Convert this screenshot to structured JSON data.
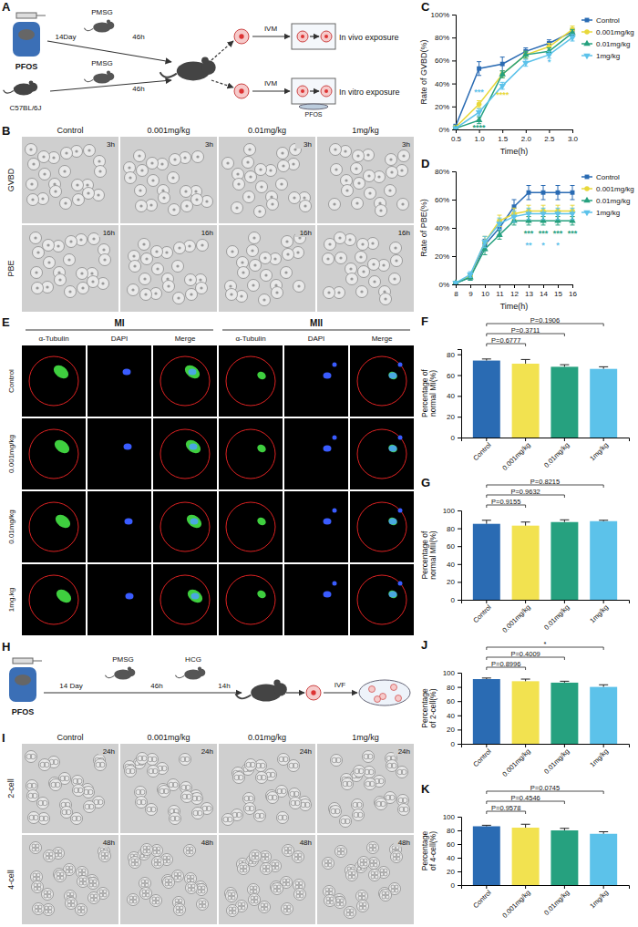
{
  "diagram_a": {
    "panel": "A",
    "pfos": "PFOS",
    "duration": "14Day",
    "priming": "46h",
    "hormone": "PMSG",
    "strain": "C57BL/6J",
    "priming_control": "46h",
    "hormone_control": "PMSG",
    "culture": "IVM",
    "in_vivo": "In vivo exposure",
    "culture_vitro": "IVM",
    "in_vitro": "In vitro exposure",
    "dish_pfos": "PFOS"
  },
  "image_b": {
    "panel": "B",
    "columns": [
      "Control",
      "0.001mg/kg",
      "0.01mg/kg",
      "1mg/kg"
    ],
    "rows": [
      "GVBD",
      "PBE"
    ],
    "times": [
      "3h",
      "16h"
    ]
  },
  "image_e": {
    "panel": "E",
    "stages": [
      "MI",
      "MII"
    ],
    "channels": [
      "α-Tubulin",
      "DAPI",
      "Merge"
    ],
    "rows": [
      "Control",
      "0.001mg/kg",
      "0.01mg/kg",
      "1mg.kg"
    ]
  },
  "diagram_h": {
    "panel": "H",
    "pfos": "PFOS",
    "duration": "14 Day",
    "priming": "46h",
    "ovulation": "14h",
    "hormone1": "PMSG",
    "hormone2": "HCG",
    "fertilization": "IVF"
  },
  "image_i": {
    "panel": "I",
    "columns": [
      "Control",
      "0.001mg/kg",
      "0.01mg/kg",
      "1mg/kg"
    ],
    "rows": [
      "2-cell",
      "4-cell"
    ],
    "times": [
      "24h",
      "48h"
    ]
  },
  "chart_data": [
    {
      "panel": "C",
      "type": "line",
      "x_label": "Time(h)",
      "y_label": "Rate of GVBD(%)",
      "x": [
        0.5,
        1,
        1.5,
        2,
        2.5,
        3
      ],
      "xlim": [
        0.5,
        3
      ],
      "xticks": [
        0.5,
        {
          "value": 1,
          "label": "1.0"
        },
        1.5,
        {
          "value": 2,
          "label": "2.0"
        },
        2.5,
        {
          "value": 3,
          "label": "3.0"
        }
      ],
      "ylim": [
        0,
        100
      ],
      "yticks": [
        {
          "value": 0,
          "label": "0%"
        },
        {
          "value": 20,
          "label": "20%"
        },
        {
          "value": 40,
          "label": "40%"
        },
        {
          "value": 60,
          "label": "60%"
        },
        {
          "value": 80,
          "label": "80%"
        },
        {
          "value": 100,
          "label": "100%"
        }
      ],
      "legend": "right",
      "series": [
        {
          "name": "Control",
          "color": "#2a6bb3",
          "marker": "square",
          "values": [
            3,
            53,
            57,
            68,
            75,
            85
          ],
          "errors": [
            1,
            6,
            6,
            3,
            3,
            3
          ]
        },
        {
          "name": "0.001mg/kg",
          "color": "#e8d83a",
          "marker": "circle",
          "values": [
            2,
            22,
            48,
            65,
            72,
            87
          ],
          "errors": [
            1,
            3,
            3,
            3,
            3,
            3
          ]
        },
        {
          "name": "0.01mg/kg",
          "color": "#26a17f",
          "marker": "triangle",
          "values": [
            1,
            8,
            48,
            65,
            68,
            84
          ],
          "errors": [
            1,
            3,
            3,
            3,
            3,
            3
          ]
        },
        {
          "name": "1mg/kg",
          "color": "#5cc2ea",
          "marker": "triangle-down",
          "values": [
            1,
            15,
            38,
            58,
            65,
            80
          ],
          "errors": [
            1,
            3,
            3,
            3,
            3,
            3
          ]
        }
      ],
      "annotations": [
        {
          "text": "***",
          "x": 1,
          "y": 30,
          "color": "#5cc2ea"
        },
        {
          "text": "****",
          "x": 1,
          "y": -1,
          "color": "#26a17f"
        },
        {
          "text": "****",
          "x": 1.5,
          "y": 28,
          "color": "#e8d83a"
        },
        {
          "text": "*",
          "x": 2.5,
          "y": 56,
          "color": "#5cc2ea"
        }
      ]
    },
    {
      "panel": "D",
      "type": "line",
      "x_label": "Time(h)",
      "y_label": "Rate of PBE(%)",
      "x": [
        8,
        9,
        10,
        11,
        12,
        13,
        14,
        15,
        16
      ],
      "xlim": [
        8,
        16
      ],
      "xticks": [
        8,
        9,
        10,
        11,
        12,
        13,
        14,
        15,
        16
      ],
      "ylim": [
        0,
        80
      ],
      "yticks": [
        {
          "value": 0,
          "label": "0%"
        },
        {
          "value": 20,
          "label": "20%"
        },
        {
          "value": 40,
          "label": "40%"
        },
        {
          "value": 60,
          "label": "60%"
        },
        {
          "value": 80,
          "label": "80%"
        }
      ],
      "legend": "right",
      "series": [
        {
          "name": "Control",
          "color": "#2a6bb3",
          "marker": "square",
          "values": [
            1,
            5,
            28,
            40,
            55,
            65,
            65,
            65,
            65
          ],
          "errors": [
            1,
            2,
            4,
            5,
            5,
            5,
            5,
            5,
            5
          ]
        },
        {
          "name": "0.001mg/kg",
          "color": "#e8d83a",
          "marker": "circle",
          "values": [
            1,
            6,
            30,
            45,
            50,
            52,
            52,
            52,
            52
          ],
          "errors": [
            1,
            2,
            4,
            4,
            4,
            4,
            4,
            4,
            4
          ]
        },
        {
          "name": "0.01mg/kg",
          "color": "#26a17f",
          "marker": "triangle",
          "values": [
            1,
            5,
            25,
            35,
            45,
            45,
            45,
            45,
            45
          ],
          "errors": [
            1,
            2,
            4,
            3,
            3,
            3,
            3,
            3,
            3
          ]
        },
        {
          "name": "1mg/kg",
          "color": "#5cc2ea",
          "marker": "triangle-down",
          "values": [
            1,
            7,
            30,
            43,
            48,
            50,
            50,
            50,
            50
          ],
          "errors": [
            1,
            2,
            4,
            4,
            4,
            4,
            4,
            4,
            4
          ]
        }
      ],
      "annotations": [
        {
          "text": "**",
          "x": 13,
          "y": 26,
          "color": "#5cc2ea"
        },
        {
          "text": "*",
          "x": 14,
          "y": 26,
          "color": "#5cc2ea"
        },
        {
          "text": "*",
          "x": 15,
          "y": 26,
          "color": "#5cc2ea"
        },
        {
          "text": "***",
          "x": 13,
          "y": 34,
          "color": "#26a17f"
        },
        {
          "text": "***",
          "x": 14,
          "y": 34,
          "color": "#26a17f"
        },
        {
          "text": "***",
          "x": 15,
          "y": 34,
          "color": "#26a17f"
        },
        {
          "text": "***",
          "x": 16,
          "y": 34,
          "color": "#26a17f"
        }
      ]
    },
    {
      "panel": "F",
      "type": "bar",
      "y_label": "Percentage of normal MI(%)",
      "categories": [
        "Control",
        "0.001mg/kg",
        "0.01mg/kg",
        "1mg/kg"
      ],
      "values": [
        74,
        71,
        68,
        66
      ],
      "errors": [
        1.5,
        4,
        2,
        2
      ],
      "colors": [
        "#2a6bb3",
        "#f2e250",
        "#26a17f",
        "#5cc2ea"
      ],
      "ylim": [
        0,
        85
      ],
      "yticks": [
        0,
        20,
        40,
        60,
        80
      ],
      "comparisons": [
        {
          "label": "P=0.6777",
          "group": "0.001mg/kg"
        },
        {
          "label": "P=0.3711",
          "group": "0.01mg/kg"
        },
        {
          "label": "P=0.1906",
          "group": "1mg/kg"
        }
      ]
    },
    {
      "panel": "G",
      "type": "bar",
      "y_label": "Percentage of normal MII(%)",
      "categories": [
        "Control",
        "0.001mg/kg",
        "0.01mg/kg",
        "1mg/kg"
      ],
      "values": [
        85,
        83,
        87,
        88
      ],
      "errors": [
        4,
        4,
        2.5,
        1
      ],
      "colors": [
        "#2a6bb3",
        "#f2e250",
        "#26a17f",
        "#5cc2ea"
      ],
      "ylim": [
        0,
        100
      ],
      "yticks": [
        0,
        20,
        40,
        60,
        80,
        100
      ],
      "comparisons": [
        {
          "label": "P=0.9155",
          "group": "0.001mg/kg"
        },
        {
          "label": "P=0.9632",
          "group": "0.01mg/kg"
        },
        {
          "label": "P=0.8215",
          "group": "1mg/kg"
        }
      ]
    },
    {
      "panel": "J",
      "type": "bar",
      "y_label": "Percentage of 2-cell(%)",
      "categories": [
        "Control",
        "0.001mg/kg",
        "0.01mg/kg",
        "1mg/kg"
      ],
      "values": [
        91,
        88,
        86,
        80
      ],
      "errors": [
        1.5,
        3,
        2,
        3
      ],
      "colors": [
        "#2a6bb3",
        "#f2e250",
        "#26a17f",
        "#5cc2ea"
      ],
      "ylim": [
        0,
        100
      ],
      "yticks": [
        0,
        20,
        40,
        60,
        80,
        100
      ],
      "comparisons": [
        {
          "label": "P=0.8996",
          "group": "0.001mg/kg"
        },
        {
          "label": "P=0.4009",
          "group": "0.01mg/kg"
        },
        {
          "label": "*",
          "group": "1mg/kg"
        }
      ]
    },
    {
      "panel": "K",
      "type": "bar",
      "y_label": "Percentage of 4-cell(%)",
      "categories": [
        "Control",
        "0.001mg/kg",
        "0.01mg/kg",
        "1mg/kg"
      ],
      "values": [
        86,
        84,
        80,
        75
      ],
      "errors": [
        1.5,
        5,
        3,
        3
      ],
      "colors": [
        "#2a6bb3",
        "#f2e250",
        "#26a17f",
        "#5cc2ea"
      ],
      "ylim": [
        0,
        100
      ],
      "yticks": [
        0,
        20,
        40,
        60,
        80,
        100
      ],
      "comparisons": [
        {
          "label": "P=0.9578",
          "group": "0.001mg/kg"
        },
        {
          "label": "P=0.4546",
          "group": "0.01mg/kg"
        },
        {
          "label": "P=0.0745",
          "group": "1mg/kg"
        }
      ]
    }
  ]
}
